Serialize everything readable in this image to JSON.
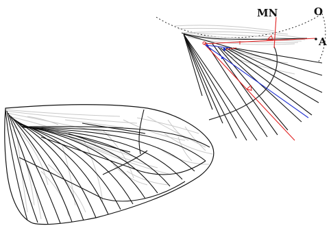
{
  "labels": {
    "mn": "MN",
    "o": "O",
    "a": "A"
  },
  "colors": {
    "vein_dark": "#111111",
    "vein_light": "#c8c8c8",
    "red": "#e02020",
    "blue": "#2030d0",
    "arc": "#222222"
  }
}
